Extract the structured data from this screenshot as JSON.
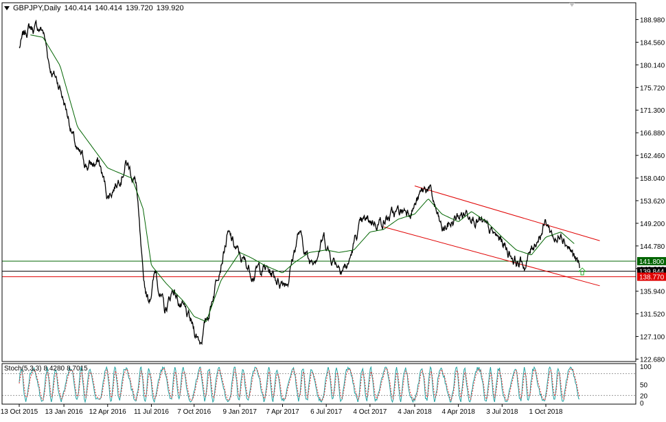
{
  "header": {
    "symbol": "GBPJPY,Daily",
    "open": "140.414",
    "high": "140.414",
    "low": "139.720",
    "close": "139.920"
  },
  "stoch_header": {
    "name": "Stoch(5,3,3)",
    "main": "8.4280",
    "signal": "8.7015"
  },
  "colors": {
    "price_line": "#000000",
    "ma_line": "#006400",
    "channel": "#e00000",
    "support_line": "#006400",
    "resistance_line": "#e00000",
    "arrow": "#22aa22",
    "stoch_main": "#20a0a0",
    "stoch_signal": "#e03030"
  },
  "chart_data": {
    "type": "line",
    "x_ticks": [
      "13 Oct 2015",
      "13 Jan 2016",
      "12 Apr 2016",
      "11 Jul 2016",
      "7 Oct 2016",
      "9 Jan 2017",
      "7 Apr 2017",
      "6 Jul 2017",
      "4 Oct 2017",
      "4 Jan 2018",
      "4 Apr 2018",
      "3 Jul 2018",
      "1 Oct 2018"
    ],
    "y_ticks": [
      "188.980",
      "184.560",
      "180.140",
      "175.720",
      "171.300",
      "166.880",
      "162.460",
      "158.040",
      "153.620",
      "149.200",
      "144.780",
      "140.360",
      "135.940",
      "131.520",
      "127.100",
      "122.680"
    ],
    "ylim": [
      122.68,
      191.0
    ],
    "price_key_points": [
      [
        "13 Oct 2015",
        183.5
      ],
      [
        "1 Nov 2015",
        187.5
      ],
      [
        "1 Dec 2015",
        187.0
      ],
      [
        "15 Dec 2015",
        180.0
      ],
      [
        "5 Jan 2016",
        176.0
      ],
      [
        "25 Jan 2016",
        169.0
      ],
      [
        "10 Feb 2016",
        162.5
      ],
      [
        "1 Mar 2016",
        160.5
      ],
      [
        "25 Mar 2016",
        161.0
      ],
      [
        "12 Apr 2016",
        154.5
      ],
      [
        "1 May 2016",
        157.5
      ],
      [
        "20 May 2016",
        161.5
      ],
      [
        "10 Jun 2016",
        157.0
      ],
      [
        "24 Jun 2016",
        137.0
      ],
      [
        "5 Jul 2016",
        134.0
      ],
      [
        "20 Jul 2016",
        140.0
      ],
      [
        "8 Aug 2016",
        131.5
      ],
      [
        "25 Aug 2016",
        136.5
      ],
      [
        "15 Sep 2016",
        132.0
      ],
      [
        "7 Oct 2016",
        128.0
      ],
      [
        "20 Oct 2016",
        126.5
      ],
      [
        "10 Nov 2016",
        133.0
      ],
      [
        "28 Nov 2016",
        141.5
      ],
      [
        "15 Dec 2016",
        147.0
      ],
      [
        "9 Jan 2017",
        142.5
      ],
      [
        "1 Feb 2017",
        140.0
      ],
      [
        "1 Mar 2017",
        140.5
      ],
      [
        "1 Apr 2017",
        138.0
      ],
      [
        "18 Apr 2017",
        138.5
      ],
      [
        "10 May 2017",
        147.5
      ],
      [
        "1 Jun 2017",
        141.5
      ],
      [
        "1 Jul 2017",
        146.5
      ],
      [
        "15 Jul 2017",
        143.0
      ],
      [
        "1 Aug 2017",
        141.5
      ],
      [
        "20 Aug 2017",
        141.0
      ],
      [
        "10 Sep 2017",
        148.0
      ],
      [
        "4 Oct 2017",
        149.5
      ],
      [
        "1 Nov 2017",
        150.0
      ],
      [
        "1 Dec 2017",
        151.0
      ],
      [
        "4 Jan 2018",
        153.0
      ],
      [
        "1 Feb 2018",
        156.5
      ],
      [
        "1 Mar 2018",
        147.5
      ],
      [
        "4 Apr 2018",
        150.5
      ],
      [
        "1 May 2018",
        152.0
      ],
      [
        "1 Jun 2018",
        147.5
      ],
      [
        "3 Jul 2018",
        145.5
      ],
      [
        "1 Aug 2018",
        142.0
      ],
      [
        "20 Aug 2018",
        141.0
      ],
      [
        "10 Sep 2018",
        146.0
      ],
      [
        "1 Oct 2018",
        149.5
      ],
      [
        "25 Oct 2018",
        145.5
      ],
      [
        "1 Nov 2018",
        148.5
      ],
      [
        "20 Nov 2018",
        144.5
      ],
      [
        "10 Dec 2018",
        140.0
      ]
    ],
    "ma_key_points": [
      [
        "5 Nov 2015",
        186.0
      ],
      [
        "1 Dec 2015",
        185.5
      ],
      [
        "5 Jan 2016",
        180.0
      ],
      [
        "10 Feb 2016",
        168.0
      ],
      [
        "12 Apr 2016",
        160.0
      ],
      [
        "1 Jun 2016",
        158.0
      ],
      [
        "24 Jun 2016",
        152.0
      ],
      [
        "11 Jul 2016",
        141.0
      ],
      [
        "10 Aug 2016",
        137.5
      ],
      [
        "15 Sep 2016",
        134.0
      ],
      [
        "7 Oct 2016",
        131.0
      ],
      [
        "1 Nov 2016",
        130.0
      ],
      [
        "1 Dec 2016",
        138.0
      ],
      [
        "9 Jan 2017",
        143.5
      ],
      [
        "1 Feb 2017",
        142.5
      ],
      [
        "1 Mar 2017",
        141.0
      ],
      [
        "7 Apr 2017",
        139.5
      ],
      [
        "1 May 2017",
        141.5
      ],
      [
        "1 Jun 2017",
        143.5
      ],
      [
        "6 Jul 2017",
        144.0
      ],
      [
        "1 Aug 2017",
        143.5
      ],
      [
        "1 Sep 2017",
        144.0
      ],
      [
        "4 Oct 2017",
        147.5
      ],
      [
        "1 Nov 2017",
        148.0
      ],
      [
        "1 Dec 2017",
        150.0
      ],
      [
        "4 Jan 2018",
        151.0
      ],
      [
        "1 Feb 2018",
        154.0
      ],
      [
        "1 Mar 2018",
        151.0
      ],
      [
        "4 Apr 2018",
        149.5
      ],
      [
        "1 May 2018",
        151.5
      ],
      [
        "1 Jun 2018",
        149.5
      ],
      [
        "3 Jul 2018",
        146.5
      ],
      [
        "1 Aug 2018",
        144.0
      ],
      [
        "1 Sep 2018",
        143.0
      ],
      [
        "1 Oct 2018",
        146.5
      ],
      [
        "1 Nov 2018",
        147.5
      ],
      [
        "1 Dec 2018",
        145.0
      ]
    ],
    "channel_upper": [
      [
        "4 Jan 2018",
        156.5
      ],
      [
        "20 Jan 2019",
        145.8
      ]
    ],
    "channel_lower": [
      [
        "1 Nov 2017",
        148.5
      ],
      [
        "20 Jan 2019",
        137.0
      ]
    ],
    "horizontal_levels": [
      {
        "label": "141.800",
        "value": 141.8,
        "color": "#006400"
      },
      {
        "label": "139.844",
        "value": 139.844,
        "color": "#000000"
      },
      {
        "label": "138.770",
        "value": 138.77,
        "color": "#e00000"
      }
    ],
    "arrow_marker": {
      "date": "15 Dec 2018",
      "value": 139.8
    },
    "stochastic": {
      "ylim": [
        0,
        100
      ],
      "y_ticks": [
        "100",
        "50",
        "20",
        "0"
      ],
      "levels": [
        80,
        20
      ],
      "cycles": 48
    }
  }
}
